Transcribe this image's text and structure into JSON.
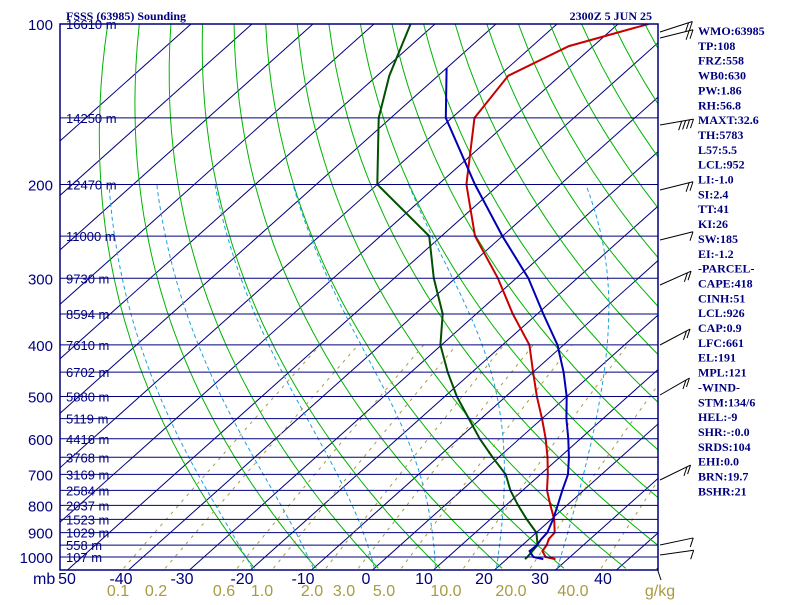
{
  "chart_data": {
    "type": "line",
    "title": "FSSS (63985) Sounding",
    "valid_time": "2300Z  5 JUN 25",
    "y_axis": {
      "unit_label": "mb",
      "scale": "log-pressure",
      "range": [
        1000,
        100
      ],
      "ticks": [
        "100",
        "200",
        "300",
        "400",
        "500",
        "600",
        "700",
        "800",
        "900",
        "1000"
      ]
    },
    "x_axis": {
      "range": [
        -50,
        50
      ],
      "ticks": [
        "50",
        "-40",
        "-30",
        "-20",
        "-10",
        "0",
        "10",
        "20",
        "30",
        "40"
      ]
    },
    "mixing_ratio_axis": {
      "unit_label": "g/kg",
      "ticks": [
        "0.1",
        "0.2",
        "0.6",
        "1.0",
        "2.0",
        "3.0",
        "5.0",
        "10.0",
        "20.0",
        "40.0"
      ]
    },
    "height_labels": [
      {
        "p": 100,
        "label": "16610 m"
      },
      {
        "p": 150,
        "label": "14250 m"
      },
      {
        "p": 200,
        "label": "12470 m"
      },
      {
        "p": 250,
        "label": "11000 m"
      },
      {
        "p": 300,
        "label": "9730 m"
      },
      {
        "p": 350,
        "label": "8594 m"
      },
      {
        "p": 400,
        "label": "7610 m"
      },
      {
        "p": 450,
        "label": "6702 m"
      },
      {
        "p": 500,
        "label": "5880 m"
      },
      {
        "p": 550,
        "label": "5119 m"
      },
      {
        "p": 600,
        "label": "4416 m"
      },
      {
        "p": 650,
        "label": "3768 m"
      },
      {
        "p": 700,
        "label": "3169 m"
      },
      {
        "p": 750,
        "label": "2584 m"
      },
      {
        "p": 800,
        "label": "2037 m"
      },
      {
        "p": 850,
        "label": "1523 m"
      },
      {
        "p": 900,
        "label": "1029 m"
      },
      {
        "p": 950,
        "label": "558 m"
      },
      {
        "p": 1000,
        "label": "107 m"
      }
    ],
    "series": [
      {
        "name": "Temperature",
        "color": "#c80000",
        "points": [
          {
            "p": 1009,
            "t": 28.0
          },
          {
            "p": 1000,
            "t": 26.0
          },
          {
            "p": 975,
            "t": 24.4
          },
          {
            "p": 950,
            "t": 24.0
          },
          {
            "p": 925,
            "t": 23.2
          },
          {
            "p": 900,
            "t": 23.0
          },
          {
            "p": 850,
            "t": 20.5
          },
          {
            "p": 800,
            "t": 17.3
          },
          {
            "p": 750,
            "t": 14.0
          },
          {
            "p": 700,
            "t": 11.2
          },
          {
            "p": 650,
            "t": 8.0
          },
          {
            "p": 600,
            "t": 4.3
          },
          {
            "p": 550,
            "t": 0.0
          },
          {
            "p": 500,
            "t": -4.9
          },
          {
            "p": 450,
            "t": -10.0
          },
          {
            "p": 400,
            "t": -15.6
          },
          {
            "p": 350,
            "t": -24.0
          },
          {
            "p": 300,
            "t": -33.0
          },
          {
            "p": 250,
            "t": -44.5
          },
          {
            "p": 200,
            "t": -55.4
          },
          {
            "p": 150,
            "t": -66.3
          },
          {
            "p": 125,
            "t": -68.5
          },
          {
            "p": 110,
            "t": -64.0
          },
          {
            "p": 100,
            "t": -55.0
          }
        ]
      },
      {
        "name": "Dewpoint",
        "color": "#005000",
        "points": [
          {
            "p": 1009,
            "t": 23.0
          },
          {
            "p": 1000,
            "t": 23.0
          },
          {
            "p": 950,
            "t": 22.5
          },
          {
            "p": 900,
            "t": 20.0
          },
          {
            "p": 850,
            "t": 16.0
          },
          {
            "p": 800,
            "t": 12.0
          },
          {
            "p": 750,
            "t": 8.0
          },
          {
            "p": 700,
            "t": 4.3
          },
          {
            "p": 650,
            "t": -1.0
          },
          {
            "p": 600,
            "t": -6.5
          },
          {
            "p": 550,
            "t": -12.0
          },
          {
            "p": 500,
            "t": -18.0
          },
          {
            "p": 450,
            "t": -24.0
          },
          {
            "p": 400,
            "t": -30.2
          },
          {
            "p": 350,
            "t": -35.5
          },
          {
            "p": 300,
            "t": -43.5
          },
          {
            "p": 250,
            "t": -52.0
          },
          {
            "p": 200,
            "t": -70.0
          },
          {
            "p": 150,
            "t": -82.0
          },
          {
            "p": 125,
            "t": -88.0
          },
          {
            "p": 100,
            "t": -94.0
          }
        ]
      },
      {
        "name": "Parcel",
        "color": "#0000b4",
        "points": [
          {
            "p": 1009,
            "t": 26.0
          },
          {
            "p": 1000,
            "t": 24.0
          },
          {
            "p": 975,
            "t": 22.3
          },
          {
            "p": 950,
            "t": 22.4
          },
          {
            "p": 926,
            "t": 22.0
          },
          {
            "p": 900,
            "t": 21.8
          },
          {
            "p": 850,
            "t": 20.3
          },
          {
            "p": 800,
            "t": 18.5
          },
          {
            "p": 750,
            "t": 16.5
          },
          {
            "p": 700,
            "t": 14.5
          },
          {
            "p": 650,
            "t": 11.5
          },
          {
            "p": 600,
            "t": 8.0
          },
          {
            "p": 550,
            "t": 4.0
          },
          {
            "p": 500,
            "t": 0.0
          },
          {
            "p": 450,
            "t": -5.0
          },
          {
            "p": 400,
            "t": -11.0
          },
          {
            "p": 350,
            "t": -19.0
          },
          {
            "p": 300,
            "t": -28.0
          },
          {
            "p": 250,
            "t": -40.0
          },
          {
            "p": 200,
            "t": -54.0
          },
          {
            "p": 150,
            "t": -71.0
          },
          {
            "p": 121,
            "t": -80.0
          }
        ]
      }
    ],
    "indices": [
      "WMO:63985",
      "TP:108",
      "FRZ:558",
      "WB0:630",
      "PW:1.86",
      "RH:56.8",
      "MAXT:32.6",
      "TH:5783",
      "L57:5.5",
      "LCL:952",
      "LI:-1.0",
      "SI:2.4",
      "TT:41",
      "KI:26",
      "SW:185",
      "EI:-1.2",
      "-PARCEL-",
      "CAPE:418",
      "CINH:51",
      "LCL:926",
      "CAP:0.9",
      "LFC:661",
      "EL:191",
      "MPL:121",
      "-WIND-",
      "STM:134/6",
      "HEL:-9",
      "SHR:-:0.0",
      "SRDS:104",
      "EHI:0.0",
      "BRN:19.7",
      "BSHR:21"
    ],
    "colors": {
      "frame": "#00007f",
      "isotherm": "#00007f",
      "dry_adiabat": "#00b400",
      "moist_adiabat": "#1ca0dc",
      "mixing_ratio": "#a89a40",
      "wind_barb": "#000000"
    },
    "wind_barbs_present": true
  }
}
